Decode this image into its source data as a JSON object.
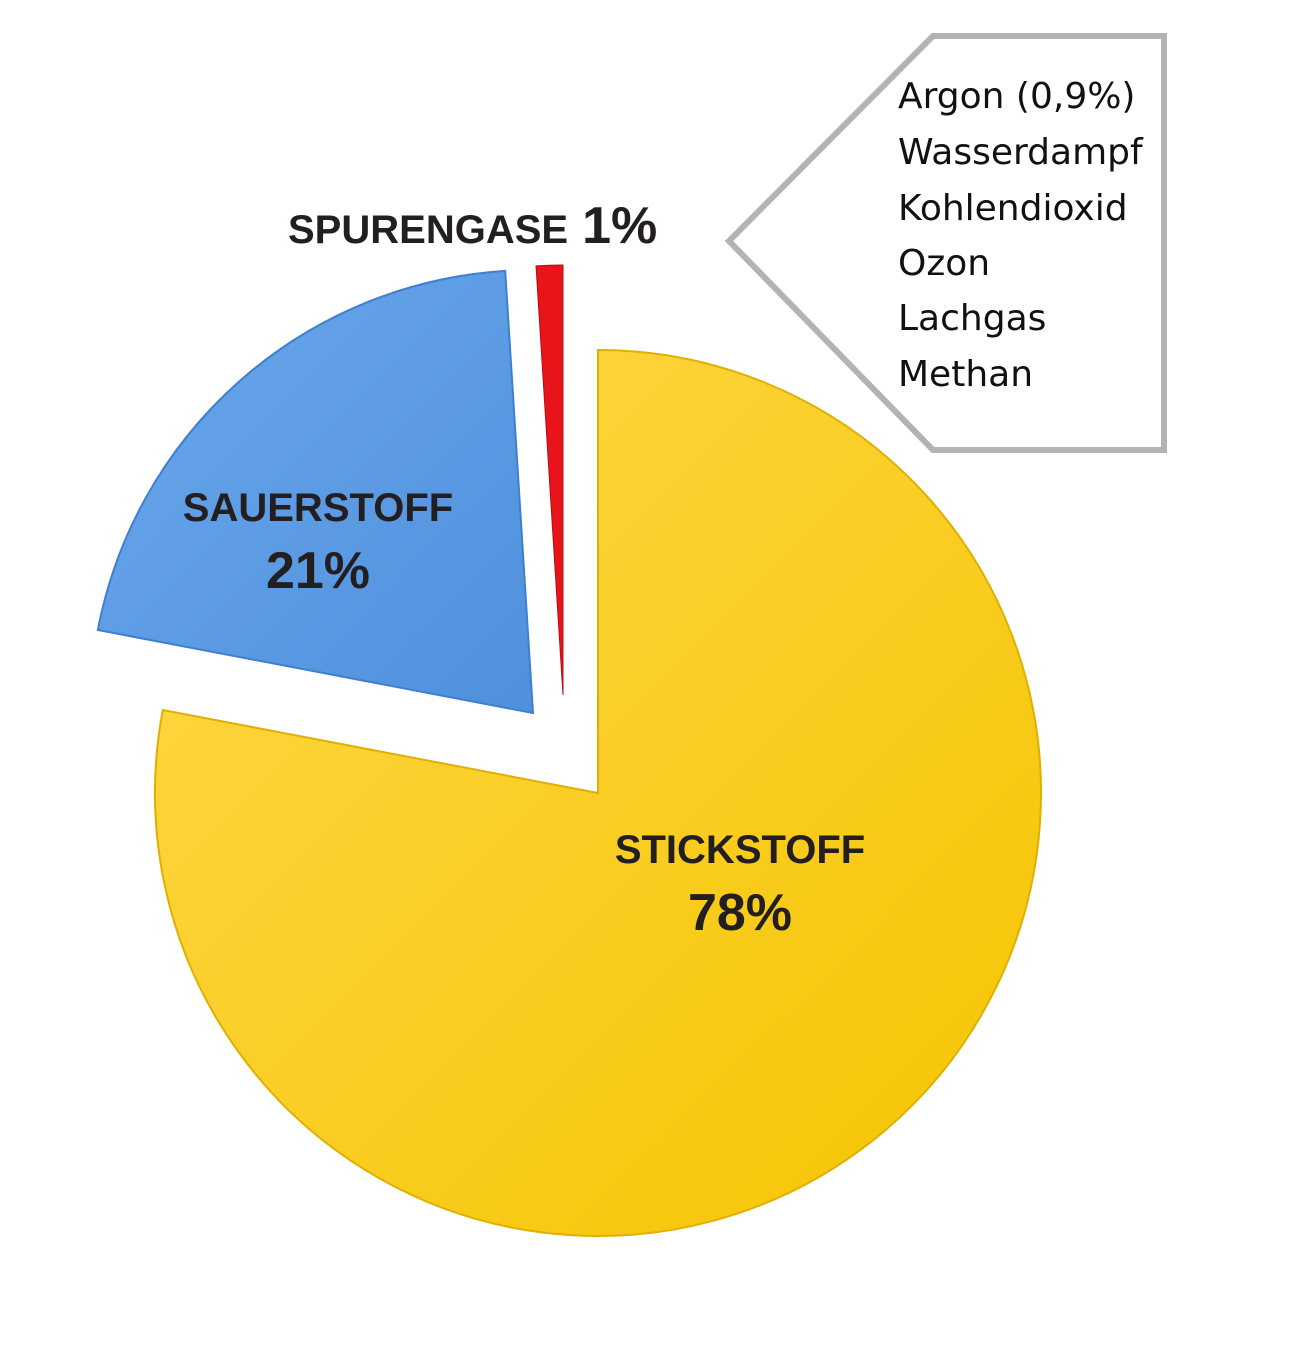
{
  "chart_data": {
    "type": "pie",
    "title": "",
    "slices": [
      {
        "name": "STICKSTOFF",
        "value": 78,
        "label": "78%",
        "color": "#FFCC00"
      },
      {
        "name": "SAUERSTOFF",
        "value": 21,
        "label": "21%",
        "color": "#5B9BE0"
      },
      {
        "name": "SPURENGASE",
        "value": 1,
        "label": "1%",
        "color": "#E8141A"
      }
    ],
    "callout": {
      "items": [
        "Argon (0,9%)",
        "Wasserdampf",
        "Kohlendioxid",
        "Ozon",
        "Lachgas",
        "Methan"
      ]
    }
  }
}
